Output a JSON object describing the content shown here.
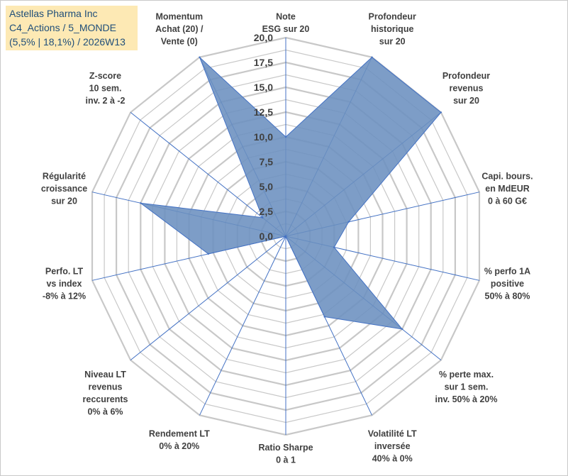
{
  "title_box": {
    "line1": "Astellas Pharma Inc",
    "line2": "C4_Actions / 5_MONDE",
    "line3": "(5,5% | 18,1%) / 2026W13"
  },
  "colors": {
    "fill": "#6b8fbf",
    "stroke": "#4472c4",
    "grid": "#c8c8c8",
    "spoke": "#4472c4",
    "title_bg": "#fde9b4",
    "title_text": "#1f4e79"
  },
  "chart_data": {
    "type": "radar",
    "title": "Astellas Pharma Inc — C4_Actions / 5_MONDE (5,5% | 18,1%) / 2026W13",
    "range": [
      0,
      20
    ],
    "ticks": [
      "0,0",
      "2,5",
      "5,0",
      "7,5",
      "10,0",
      "12,5",
      "15,0",
      "17,5",
      "20,0"
    ],
    "tick_values": [
      0,
      2.5,
      5,
      7.5,
      10,
      12.5,
      15,
      17.5,
      20
    ],
    "axes": [
      {
        "label": [
          "Note",
          "ESG sur 20"
        ],
        "value": 10
      },
      {
        "label": [
          "Profondeur",
          "historique",
          "sur 20"
        ],
        "value": 20
      },
      {
        "label": [
          "Profondeur",
          "revenus",
          "sur 20"
        ],
        "value": 20
      },
      {
        "label": [
          "Capi. bours.",
          "en MdEUR",
          "0 à 60 G€"
        ],
        "value": 6.5
      },
      {
        "label": [
          "% perfo 1A",
          "positive",
          "50% à 80%"
        ],
        "value": 5
      },
      {
        "label": [
          "% perte max.",
          "sur 1 sem.",
          "inv. 50% à 20%"
        ],
        "value": 15
      },
      {
        "label": [
          "Volatilité LT",
          "inversée",
          "40% à 0%"
        ],
        "value": 9
      },
      {
        "label": [
          "Ratio Sharpe",
          "0 à 1"
        ],
        "value": 0
      },
      {
        "label": [
          "Rendement LT",
          "0% à 20%"
        ],
        "value": 0
      },
      {
        "label": [
          "Niveau LT",
          "revenus",
          "reccurents",
          "0% à 6%"
        ],
        "value": 0
      },
      {
        "label": [
          "Perfo. LT",
          "vs index",
          "-8% à 12%"
        ],
        "value": 8
      },
      {
        "label": [
          "Régularité",
          "croissance",
          "sur 20"
        ],
        "value": 15
      },
      {
        "label": [
          "Z-score",
          "10 sem.",
          "inv. 2 à -2"
        ],
        "value": 3
      },
      {
        "label": [
          "Momentum",
          "Achat (20) /",
          "Vente (0)"
        ],
        "value": 20
      }
    ]
  }
}
